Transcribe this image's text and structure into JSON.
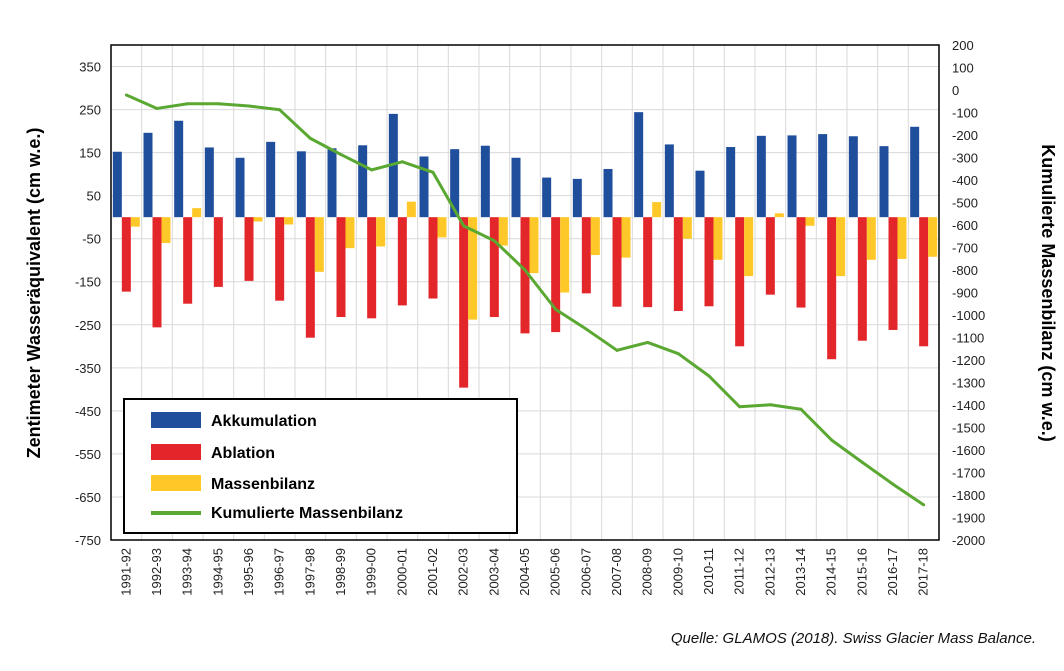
{
  "chart_data": {
    "type": "bar+line",
    "categories": [
      "1991-92",
      "1992-93",
      "1993-94",
      "1994-95",
      "1995-96",
      "1996-97",
      "1997-98",
      "1998-99",
      "1999-00",
      "2000-01",
      "2001-02",
      "2002-03",
      "2003-04",
      "2004-05",
      "2005-06",
      "2006-07",
      "2007-08",
      "2008-09",
      "2009-10",
      "2010-11",
      "2011-12",
      "2012-13",
      "2013-14",
      "2014-15",
      "2015-16",
      "2016-17",
      "2017-18"
    ],
    "series": [
      {
        "name": "Akkumulation",
        "type": "bar",
        "axis": "left",
        "color": "#1f4e9c",
        "values": [
          152,
          196,
          224,
          162,
          138,
          175,
          153,
          160,
          167,
          240,
          141,
          158,
          166,
          138,
          92,
          89,
          112,
          244,
          169,
          108,
          163,
          189,
          190,
          193,
          188,
          165,
          210
        ]
      },
      {
        "name": "Ablation",
        "type": "bar",
        "axis": "left",
        "color": "#e3262a",
        "values": [
          -173,
          -256,
          -201,
          -162,
          -148,
          -194,
          -280,
          -232,
          -235,
          -205,
          -189,
          -396,
          -232,
          -270,
          -267,
          -177,
          -208,
          -209,
          -218,
          -207,
          -300,
          -180,
          -210,
          -330,
          -287,
          -262,
          -300
        ]
      },
      {
        "name": "Massenbilanz",
        "type": "bar",
        "axis": "left",
        "color": "#ffc829",
        "values": [
          -22,
          -60,
          21,
          0,
          -10,
          -17,
          -127,
          -72,
          -68,
          36,
          -47,
          -238,
          -66,
          -130,
          -175,
          -88,
          -94,
          35,
          -50,
          -99,
          -137,
          9,
          -20,
          -137,
          -99,
          -97,
          -92
        ]
      },
      {
        "name": "Kumulierte Massenbilanz",
        "type": "line",
        "axis": "right",
        "color": "#5aa832",
        "values": [
          -22,
          -82,
          -61,
          -61,
          -71,
          -88,
          -215,
          -287,
          -355,
          -319,
          -366,
          -604,
          -670,
          -800,
          -975,
          -1063,
          -1157,
          -1122,
          -1172,
          -1271,
          -1408,
          -1399,
          -1419,
          -1556,
          -1655,
          -1752,
          -1844
        ]
      }
    ],
    "ylabel_left": "Zentimeter Wasseräquivalent (cm w.e.)",
    "ylabel_right": "Kumulierte Massenbilanz  (cm w.e.)",
    "ylim_left": [
      -750,
      400
    ],
    "ylim_right": [
      -2000,
      200
    ],
    "yticks_left": [
      "350",
      "250",
      "150",
      "50",
      "-50",
      "-150",
      "-250",
      "-350",
      "-450",
      "-550",
      "-650",
      "-750"
    ],
    "yticks_right": [
      "200",
      "100",
      "0",
      "-100",
      "-200",
      "-300",
      "-400",
      "-500",
      "-600",
      "-700",
      "-800",
      "-900",
      "-1000",
      "-1100",
      "-1200",
      "-1300",
      "-1400",
      "-1500",
      "-1600",
      "-1700",
      "-1800",
      "-1900",
      "-2000"
    ],
    "grid": true,
    "legend": "bottom-left",
    "source": "Quelle: GLAMOS (2018). Swiss Glacier Mass Balance."
  }
}
